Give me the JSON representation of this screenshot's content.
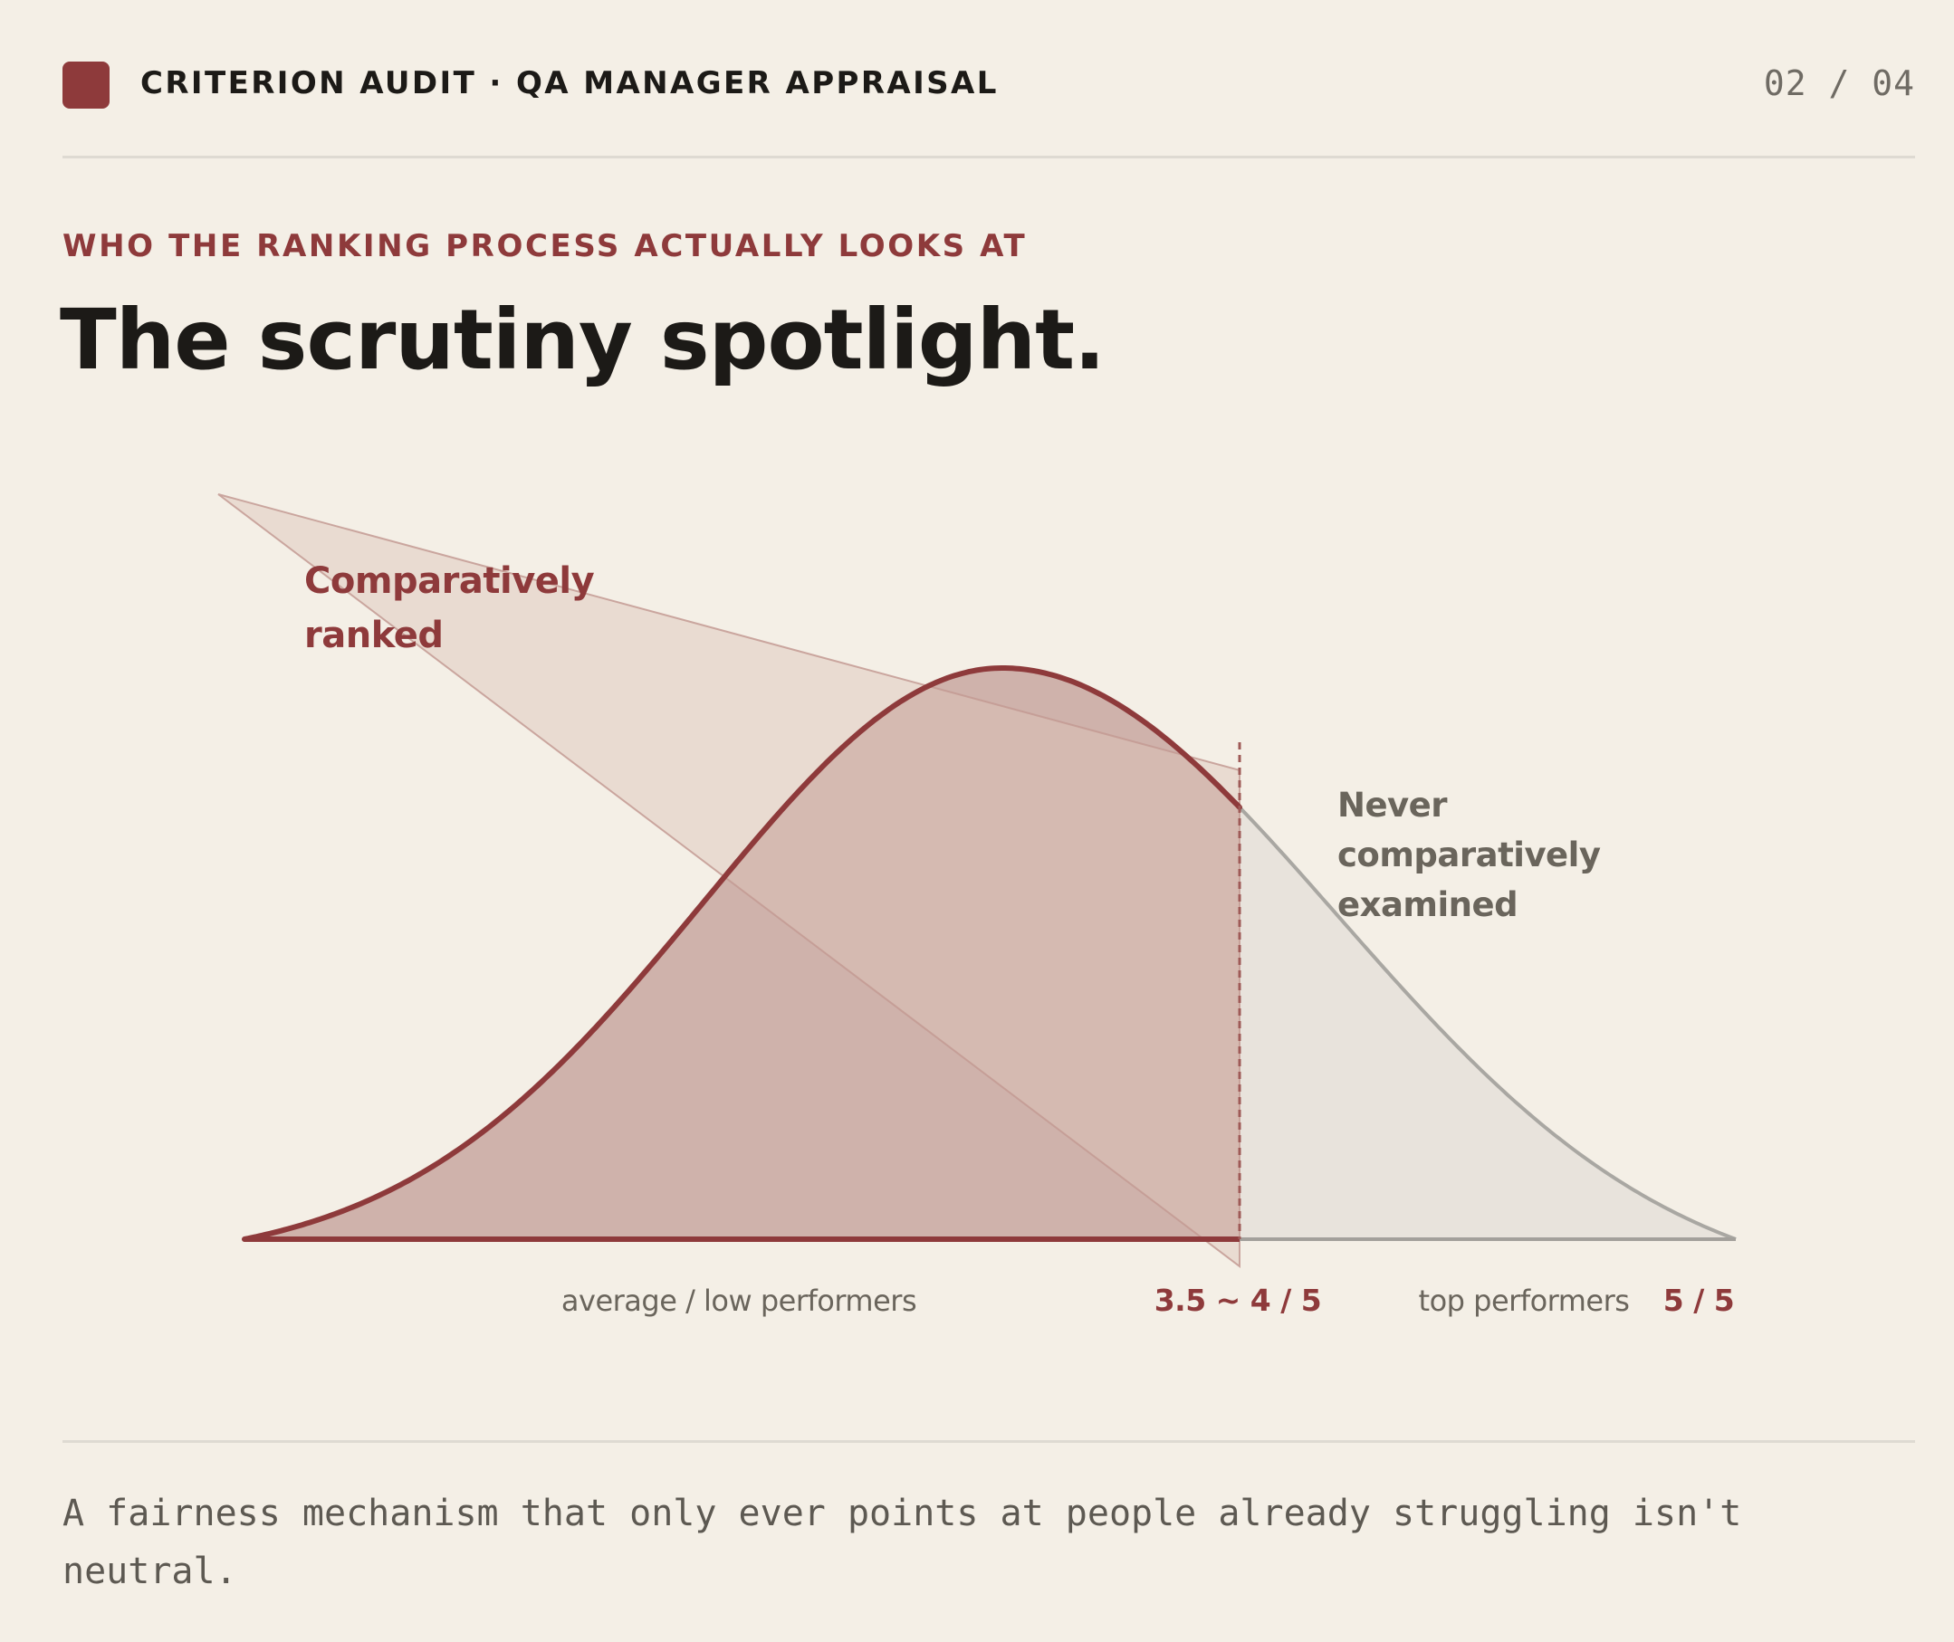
{
  "header": {
    "title": "CRITERION AUDIT · QA MANAGER APPRAISAL",
    "page_counter": "02 / 04"
  },
  "kicker": "WHO THE RANKING PROCESS ACTUALLY LOOKS AT",
  "headline": "The scrutiny spotlight.",
  "diagram": {
    "spotlight_label_line1": "Comparatively",
    "spotlight_label_line2": "ranked",
    "unexamined_label_line1": "Never",
    "unexamined_label_line2": "comparatively",
    "unexamined_label_line3": "examined",
    "axis_label_left": "average / low performers",
    "axis_label_threshold": "3.5 ~ 4 / 5",
    "axis_label_right": "top performers",
    "axis_label_max": "5 / 5",
    "threshold_fraction": 0.667,
    "colors": {
      "accent": "#8e3a3b",
      "grey_curve": "#a9a7a2",
      "grey_fill": "#e8e3dc",
      "ranked_fill": "#cfb2ab",
      "spotlight_fill": "#e9ded5",
      "background": "#f4efe6"
    }
  },
  "caption": "A fairness mechanism that only ever points at people already struggling isn't neutral."
}
